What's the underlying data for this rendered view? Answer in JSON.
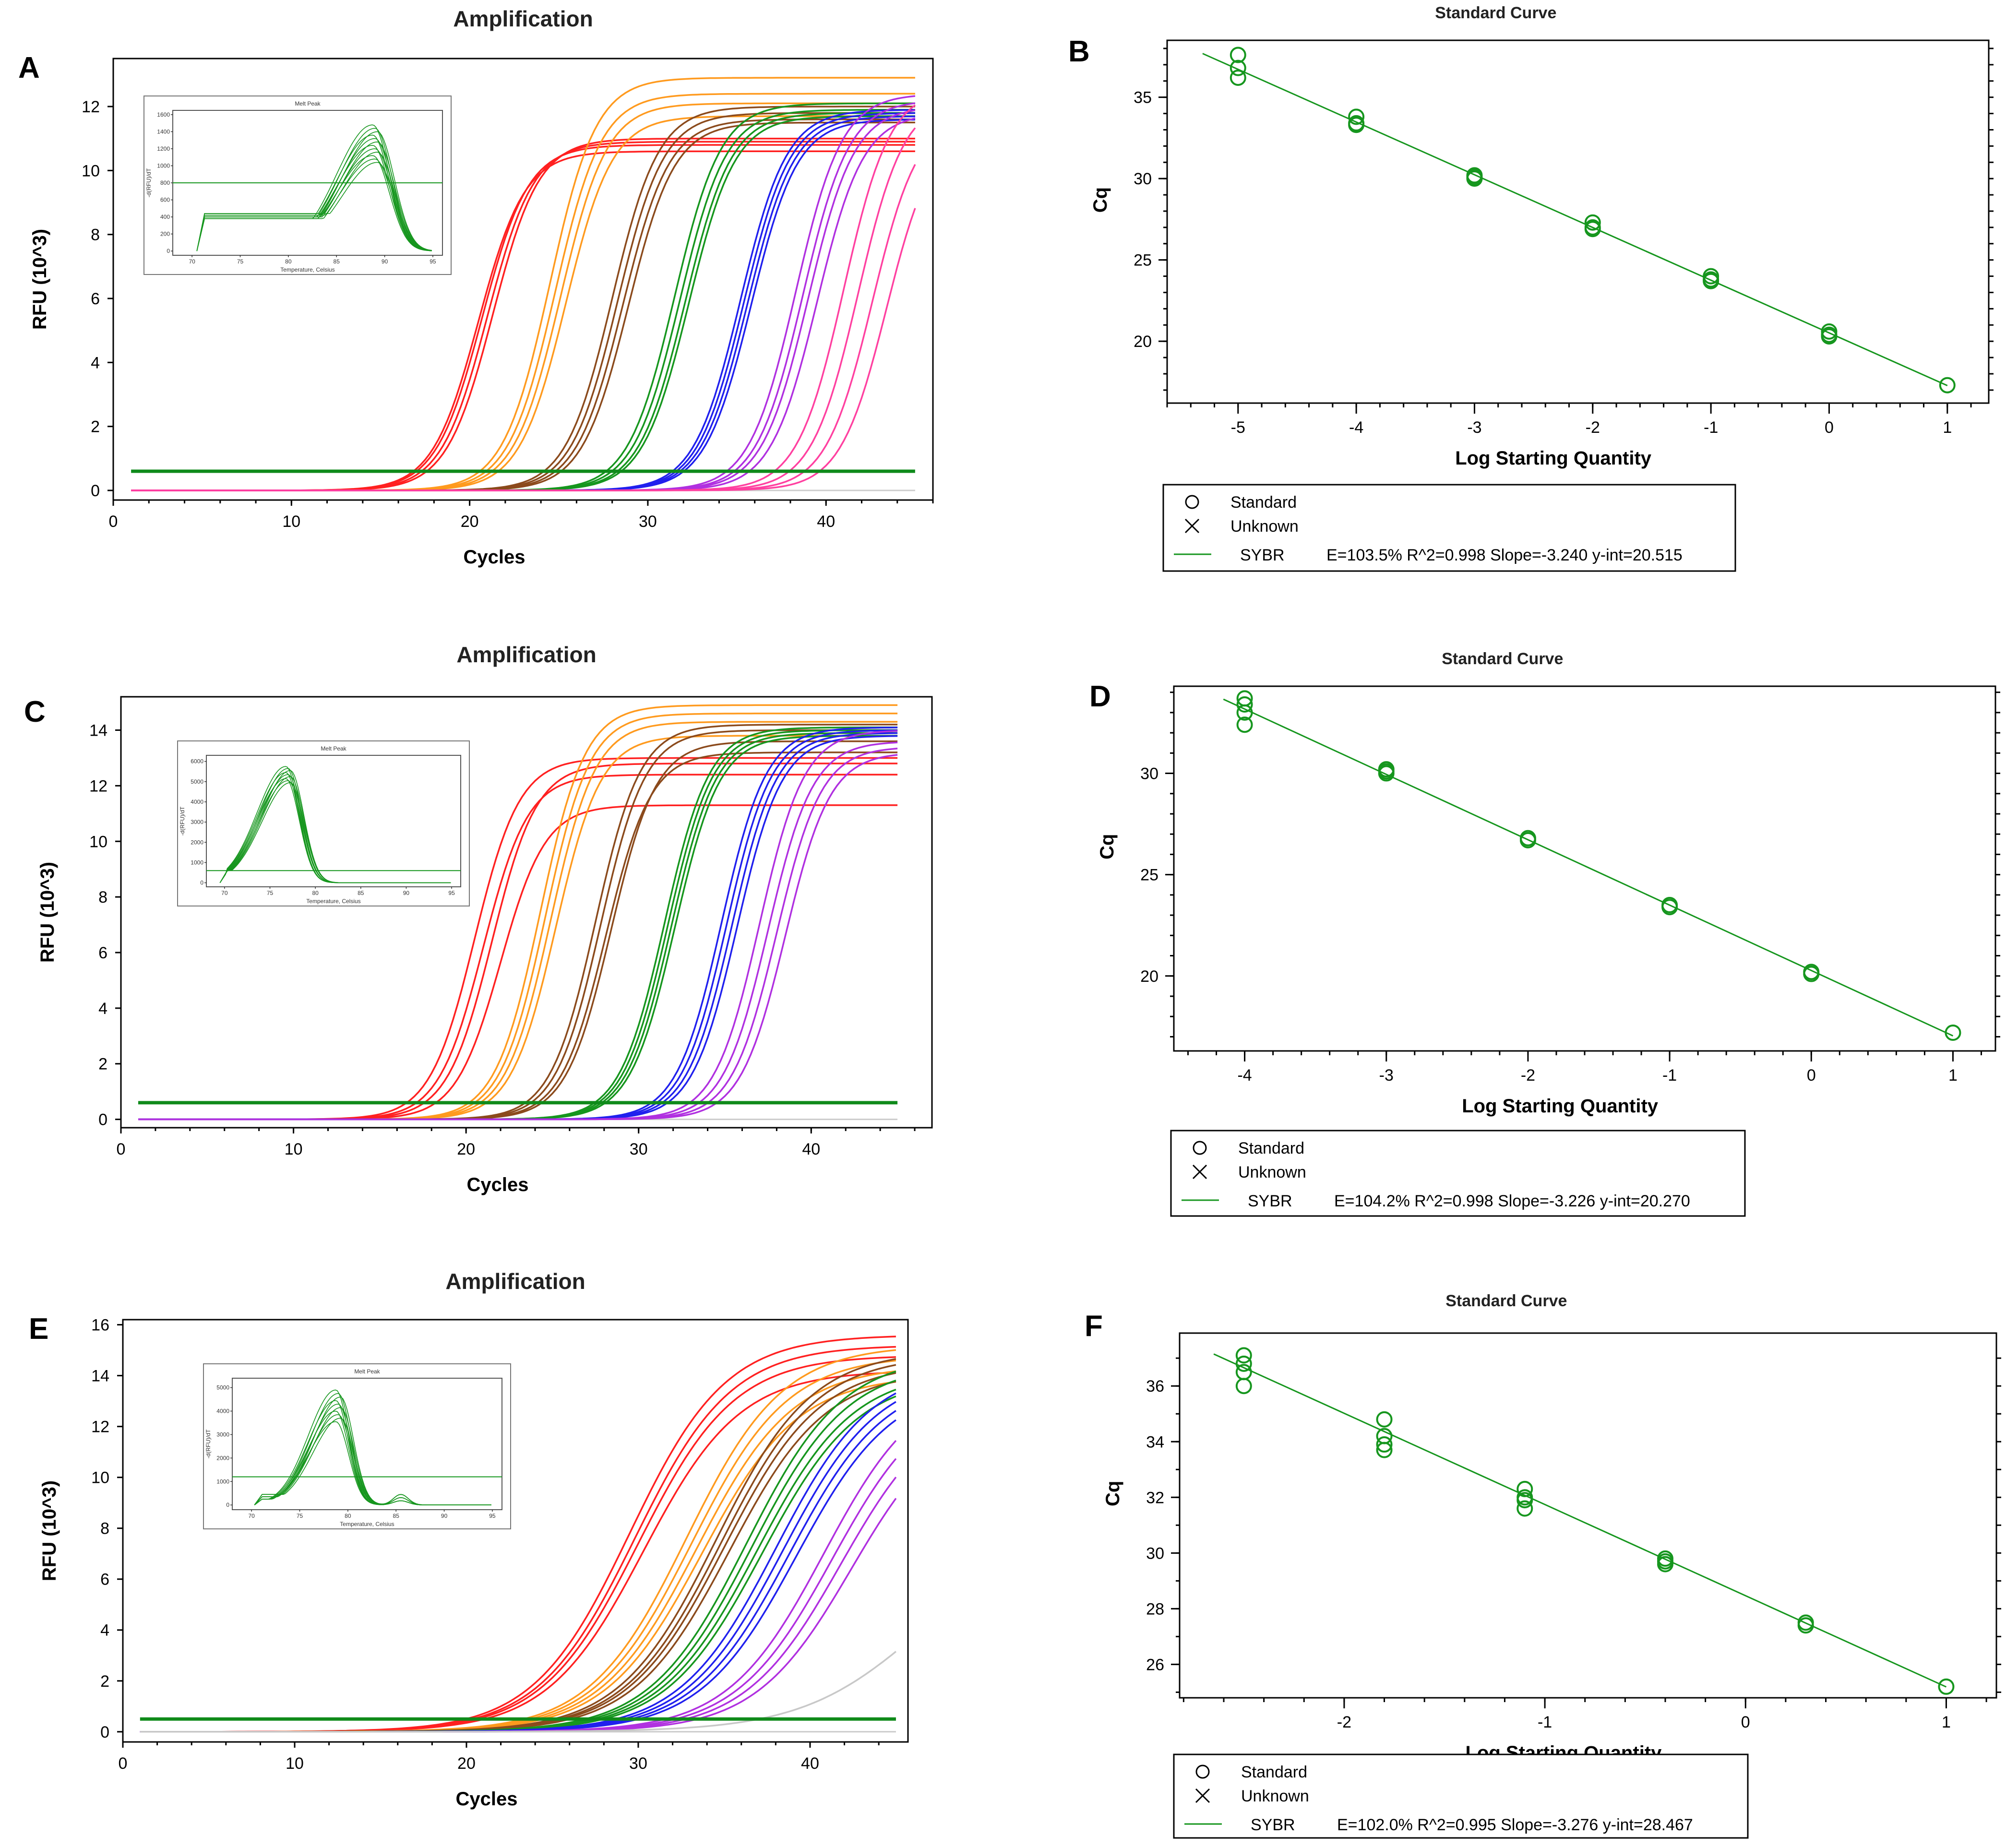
{
  "panels": {
    "A": "A",
    "B": "B",
    "C": "C",
    "D": "D",
    "E": "E",
    "F": "F"
  },
  "chart_data": [
    {
      "id": "A",
      "type": "line",
      "title": "Amplification",
      "xlabel": "Cycles",
      "ylabel": "RFU (10^3)",
      "xlim": [
        0,
        46
      ],
      "ylim": [
        -0.3,
        13.5
      ],
      "xticks": [
        0,
        10,
        20,
        30,
        40
      ],
      "yticks": [
        0,
        2,
        4,
        6,
        8,
        10,
        12
      ],
      "threshold": 0.6,
      "xmin_data": 1,
      "xmax_data": 45,
      "groups": [
        {
          "name": "",
          "color": "#ff2020",
          "ct": [
            20.5,
            20.7,
            21.0,
            21.3
          ],
          "plateau": [
            10.6,
            10.8,
            10.9,
            11.0
          ]
        },
        {
          "name": "",
          "color": "#ff9a1e",
          "ct": [
            24.5,
            24.8,
            25.1,
            25.4
          ],
          "plateau": [
            12.9,
            12.4,
            12.1,
            11.7
          ]
        },
        {
          "name": "",
          "color": "#8b4a1c",
          "ct": [
            28.0,
            28.3,
            28.6,
            28.9
          ],
          "plateau": [
            12.0,
            11.8,
            11.6,
            11.5
          ]
        },
        {
          "name": "",
          "color": "#16961e",
          "ct": [
            31.5,
            31.8,
            32.1,
            32.3
          ],
          "plateau": [
            12.1,
            11.9,
            11.8,
            11.7
          ]
        },
        {
          "name": "",
          "color": "#2020ee",
          "ct": [
            35.2,
            35.4,
            35.6,
            35.8
          ],
          "plateau": [
            11.9,
            11.8,
            11.7,
            11.6
          ]
        },
        {
          "name": "",
          "color": "#b030e0",
          "ct": [
            38.3,
            38.7,
            39.0,
            39.5
          ],
          "plateau": [
            12.4,
            12.2,
            12.0,
            11.8
          ]
        },
        {
          "name": "",
          "color": "#ff40a0",
          "ct": [
            41.0,
            41.8,
            42.6,
            43.4
          ],
          "plateau": [
            12.6,
            12.3,
            11.8,
            11.4
          ]
        }
      ],
      "inset": {
        "title": "Melt Peak",
        "xlabel": "Temperature, Celsius",
        "ylabel": "-d(RFU)/dT",
        "xlim": [
          68,
          96
        ],
        "ylim": [
          -50,
          1650
        ],
        "xticks": [
          70,
          75,
          80,
          85,
          90,
          95
        ],
        "xtick_labels": [
          "70",
          "75",
          "80",
          "85",
          "90",
          "95"
        ],
        "yticks": [
          0,
          200,
          400,
          600,
          800,
          1000,
          1200,
          1400,
          1600
        ],
        "ytick_labels": [
          "0",
          "200",
          "400",
          "600",
          "800",
          "1000",
          "1200",
          "1400",
          "1600"
        ],
        "threshold": 800,
        "peak_x": 89,
        "peak_heights": [
          1480,
          1440,
          1400,
          1360,
          1320,
          1280,
          1240,
          1200,
          1160,
          1120,
          1080,
          1040
        ],
        "peak_width": 2.5,
        "base_x_start": 70.5,
        "base_levels": [
          380,
          400,
          420,
          440
        ],
        "color": "#16961e"
      }
    },
    {
      "id": "B",
      "type": "scatter",
      "title": "Standard Curve",
      "xlabel": "Log Starting Quantity",
      "ylabel": "Cq",
      "xlim": [
        -5.6,
        1.35
      ],
      "ylim": [
        16.2,
        38.5
      ],
      "xticks": [
        -5,
        -4,
        -3,
        -2,
        -1,
        0,
        1
      ],
      "yticks": [
        20,
        25,
        30,
        35
      ],
      "color": "#16961e",
      "points": [
        [
          -5,
          37.6
        ],
        [
          -5,
          36.8
        ],
        [
          -5,
          36.2
        ],
        [
          -4,
          33.8
        ],
        [
          -4,
          33.4
        ],
        [
          -4,
          33.3
        ],
        [
          -3,
          30.2
        ],
        [
          -3,
          30.1
        ],
        [
          -3,
          30.0
        ],
        [
          -2,
          27.3
        ],
        [
          -2,
          27.0
        ],
        [
          -2,
          26.9
        ],
        [
          -1,
          24.0
        ],
        [
          -1,
          23.8
        ],
        [
          -1,
          23.7
        ],
        [
          0,
          20.6
        ],
        [
          0,
          20.4
        ],
        [
          0,
          20.3
        ],
        [
          1,
          17.3
        ]
      ],
      "fit": {
        "slope": -3.24,
        "intercept": 20.515,
        "x_range": [
          -5.3,
          1
        ]
      },
      "legend": {
        "standard": "Standard",
        "unknown": "Unknown",
        "dye": "SYBR",
        "stats": "E=103.5% R^2=0.998  Slope=-3.240  y-int=20.515"
      }
    },
    {
      "id": "C",
      "type": "line",
      "title": "Amplification",
      "xlabel": "Cycles",
      "ylabel": "RFU (10^3)",
      "xlim": [
        0,
        47
      ],
      "ylim": [
        -0.3,
        15.2
      ],
      "xticks": [
        0,
        10,
        20,
        30,
        40
      ],
      "yticks": [
        0,
        2,
        4,
        6,
        8,
        10,
        12,
        14
      ],
      "threshold": 0.6,
      "xmin_data": 1,
      "xmax_data": 45,
      "groups": [
        {
          "name": "",
          "color": "#ff2020",
          "ct": [
            20.5,
            21.0,
            21.5,
            22.0
          ],
          "plateau": [
            13.0,
            12.4,
            12.8,
            11.3
          ]
        },
        {
          "name": "",
          "color": "#ff9a1e",
          "ct": [
            24.3,
            24.6,
            24.9,
            25.2
          ],
          "plateau": [
            14.9,
            14.6,
            14.3,
            13.8
          ]
        },
        {
          "name": "",
          "color": "#8b4a1c",
          "ct": [
            27.5,
            27.8,
            28.1,
            28.4
          ],
          "plateau": [
            14.2,
            14.0,
            13.2,
            13.6
          ]
        },
        {
          "name": "",
          "color": "#16961e",
          "ct": [
            31.5,
            31.7,
            31.9,
            32.1
          ],
          "plateau": [
            14.1,
            14.0,
            13.9,
            13.8
          ]
        },
        {
          "name": "",
          "color": "#2020ee",
          "ct": [
            34.8,
            35.1,
            35.4,
            35.7
          ],
          "plateau": [
            14.1,
            14.0,
            13.9,
            13.8
          ]
        },
        {
          "name": "",
          "color": "#b030e0",
          "ct": [
            37.0,
            37.5,
            38.0,
            38.5
          ],
          "plateau": [
            14.0,
            13.6,
            13.4,
            13.2
          ]
        }
      ],
      "inset": {
        "title": "Melt Peak",
        "xlabel": "Temperature, Celsius",
        "ylabel": "-d(RFU)/dT",
        "xlim": [
          68,
          96
        ],
        "ylim": [
          -200,
          6300
        ],
        "xticks": [
          70,
          75,
          80,
          85,
          90,
          95
        ],
        "xtick_labels": [
          "70",
          "75",
          "80",
          "85",
          "90",
          "95"
        ],
        "yticks": [
          0,
          1000,
          2000,
          3000,
          4000,
          5000,
          6000
        ],
        "ytick_labels": [
          "0",
          "1000",
          "2000",
          "3000",
          "4000",
          "5000",
          "6000"
        ],
        "threshold": 600,
        "peak_x": 77,
        "peak_heights": [
          5750,
          5650,
          5550,
          5450,
          5350,
          5250,
          5150,
          5050,
          4950
        ],
        "peak_width": 2.1,
        "base_x_start": 69.5,
        "base_levels": [
          550,
          580,
          610
        ],
        "color": "#16961e"
      }
    },
    {
      "id": "D",
      "type": "scatter",
      "title": "Standard Curve",
      "xlabel": "Log Starting Quantity",
      "ylabel": "Cq",
      "xlim": [
        -4.5,
        1.3
      ],
      "ylim": [
        16.3,
        34.3
      ],
      "xticks": [
        -4,
        -3,
        -2,
        -1,
        0,
        1
      ],
      "yticks": [
        20,
        25,
        30
      ],
      "color": "#16961e",
      "points": [
        [
          -4,
          33.7
        ],
        [
          -4,
          33.4
        ],
        [
          -4,
          33.0
        ],
        [
          -4,
          32.4
        ],
        [
          -3,
          30.2
        ],
        [
          -3,
          30.1
        ],
        [
          -3,
          30.0
        ],
        [
          -2,
          26.8
        ],
        [
          -2,
          26.7
        ],
        [
          -1,
          23.5
        ],
        [
          -1,
          23.4
        ],
        [
          0,
          20.2
        ],
        [
          0,
          20.1
        ],
        [
          1,
          17.2
        ]
      ],
      "fit": {
        "slope": -3.226,
        "intercept": 20.27,
        "x_range": [
          -4.15,
          1
        ]
      },
      "legend": {
        "standard": "Standard",
        "unknown": "Unknown",
        "dye": "SYBR",
        "stats": "E=104.2% R^2=0.998  Slope=-3.226  y-int=20.270"
      }
    },
    {
      "id": "E",
      "type": "line",
      "title": "Amplification",
      "xlabel": "Cycles",
      "ylabel": "RFU (10^3)",
      "xlim": [
        0,
        45.7
      ],
      "ylim": [
        -0.4,
        16.2
      ],
      "xticks": [
        0,
        10,
        20,
        30,
        40
      ],
      "yticks": [
        0,
        2,
        4,
        6,
        8,
        10,
        12,
        14,
        16
      ],
      "threshold": 0.5,
      "xmin_data": 1,
      "xmax_data": 45,
      "groups": [
        {
          "name": "",
          "color": "#ff2020",
          "ct": [
            29.5,
            29.8,
            30.0,
            30.3
          ],
          "plateau": [
            15.6,
            15.2,
            14.8,
            14.2
          ],
          "slope": 2.8
        },
        {
          "name": "",
          "color": "#ff9a1e",
          "ct": [
            32.8,
            33.1,
            33.4,
            33.7
          ],
          "plateau": [
            15.2,
            14.8,
            14.4,
            14.0
          ],
          "slope": 2.8
        },
        {
          "name": "",
          "color": "#8b4a1c",
          "ct": [
            34.5,
            34.8,
            35.0,
            35.3
          ],
          "plateau": [
            15.0,
            14.8,
            14.5,
            14.2
          ],
          "slope": 2.8
        },
        {
          "name": "",
          "color": "#16961e",
          "ct": [
            36.3,
            36.6,
            36.9,
            37.2
          ],
          "plateau": [
            14.8,
            14.5,
            14.2,
            14.0
          ],
          "slope": 2.8
        },
        {
          "name": "",
          "color": "#2020ee",
          "ct": [
            38.0,
            38.4,
            38.8,
            39.2
          ],
          "plateau": [
            14.4,
            14.2,
            14.0,
            13.8
          ],
          "slope": 2.8
        },
        {
          "name": "",
          "color": "#b030e0",
          "ct": [
            40.8,
            41.3,
            41.8,
            42.4
          ],
          "plateau": [
            14.0,
            13.6,
            13.2,
            12.8
          ],
          "slope": 2.8
        },
        {
          "name": "",
          "color": "#c8c8c8",
          "ct": [
            46.5
          ],
          "plateau": [
            8.0
          ],
          "slope": 3.5
        }
      ],
      "inset": {
        "title": "Melt Peak",
        "xlabel": "Temperature, Celsius",
        "ylabel": "-d(RFU)/dT",
        "xlim": [
          68,
          96
        ],
        "ylim": [
          -200,
          5400
        ],
        "xticks": [
          70,
          75,
          80,
          85,
          90,
          95
        ],
        "xtick_labels": [
          "70",
          "75",
          "80",
          "85",
          "90",
          "95"
        ],
        "yticks": [
          0,
          1000,
          2000,
          3000,
          4000,
          5000
        ],
        "ytick_labels": [
          "0",
          "1000",
          "2000",
          "3000",
          "4000",
          "5000"
        ],
        "threshold": 1200,
        "peak_x": 79,
        "peak_heights": [
          4900,
          4750,
          4600,
          4450,
          4300,
          4150,
          4000,
          3850,
          3700,
          3550
        ],
        "peak_width": 1.9,
        "base_x_start": 70.3,
        "base_levels": [
          250,
          350,
          450
        ],
        "second_peak_x": 85.5,
        "second_peak_height": 450,
        "color": "#16961e"
      }
    },
    {
      "id": "F",
      "type": "scatter",
      "title": "Standard Curve",
      "xlabel": "Log Starting Quantity",
      "ylabel": "Cq",
      "xlim": [
        -2.82,
        1.25
      ],
      "ylim": [
        24.8,
        37.9
      ],
      "xticks": [
        -2,
        -1,
        0,
        1
      ],
      "yticks": [
        26,
        28,
        30,
        32,
        34,
        36
      ],
      "color": "#16961e",
      "points": [
        [
          -2.5,
          37.1
        ],
        [
          -2.5,
          36.8
        ],
        [
          -2.5,
          36.5
        ],
        [
          -2.5,
          36.0
        ],
        [
          -1.8,
          34.8
        ],
        [
          -1.8,
          34.2
        ],
        [
          -1.8,
          33.9
        ],
        [
          -1.8,
          33.7
        ],
        [
          -1.1,
          32.3
        ],
        [
          -1.1,
          32.0
        ],
        [
          -1.1,
          31.9
        ],
        [
          -1.1,
          31.6
        ],
        [
          -0.4,
          29.8
        ],
        [
          -0.4,
          29.7
        ],
        [
          -0.4,
          29.6
        ],
        [
          0.3,
          27.5
        ],
        [
          0.3,
          27.4
        ],
        [
          1,
          25.2
        ]
      ],
      "fit": {
        "slope": -3.276,
        "intercept": 28.467,
        "x_range": [
          -2.65,
          1
        ]
      },
      "legend": {
        "standard": "Standard",
        "unknown": "Unknown",
        "dye": "SYBR",
        "stats": "E=102.0% R^2=0.995  Slope=-3.276  y-int=28.467"
      }
    }
  ]
}
